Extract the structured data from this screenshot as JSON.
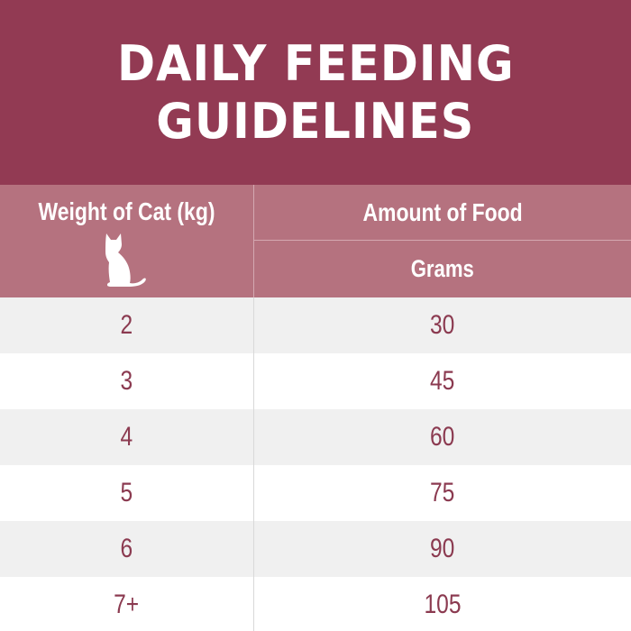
{
  "title": {
    "line1": "DAILY FEEDING",
    "line2": "GUIDELINES"
  },
  "table": {
    "header": {
      "weight_label": "Weight of Cat (kg)",
      "amount_label": "Amount of Food",
      "unit_label": "Grams",
      "icon": "cat-silhouette-icon"
    },
    "rows": [
      {
        "weight": "2",
        "grams": "30"
      },
      {
        "weight": "3",
        "grams": "45"
      },
      {
        "weight": "4",
        "grams": "60"
      },
      {
        "weight": "5",
        "grams": "75"
      },
      {
        "weight": "6",
        "grams": "90"
      },
      {
        "weight": "7+",
        "grams": "105"
      }
    ]
  },
  "colors": {
    "title_background": "#923a53",
    "header_background": "#b5727f",
    "row_alt_background": "#f0f0f0",
    "value_text": "#8b3a50"
  }
}
